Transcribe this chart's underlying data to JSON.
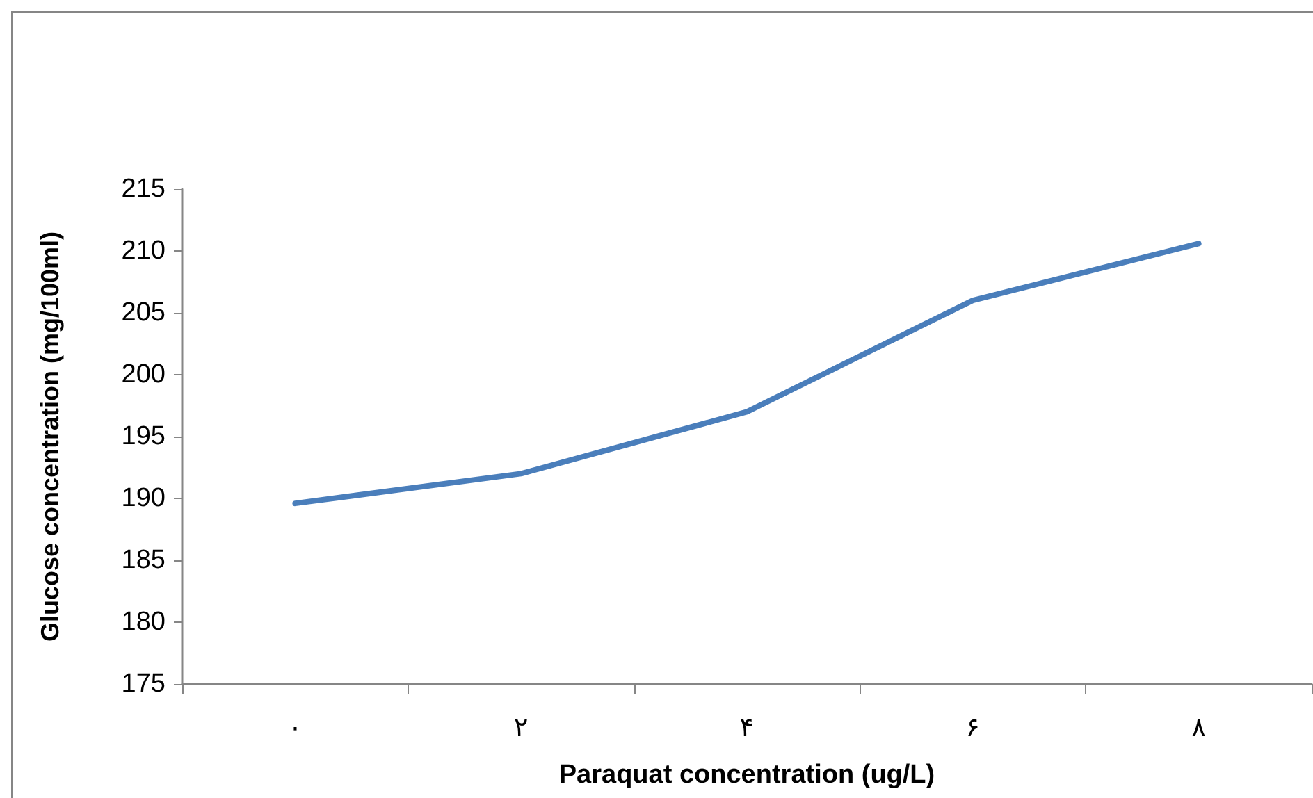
{
  "chart_data": {
    "type": "line",
    "xlabel": "Paraquat concentration (ug/L)",
    "ylabel": "Glucose concentration (mg/100ml)",
    "categories": [
      "۰",
      "۲",
      "۴",
      "۶",
      "۸"
    ],
    "series": [
      {
        "color": "#4a7ebb",
        "values": [
          189.6,
          192.0,
          197.0,
          206.0,
          210.6
        ]
      }
    ],
    "ylim": [
      175,
      215
    ],
    "yticks": [
      175,
      180,
      185,
      190,
      195,
      200,
      205,
      210,
      215
    ],
    "grid": false,
    "marker": "none",
    "line_style": "solid"
  }
}
